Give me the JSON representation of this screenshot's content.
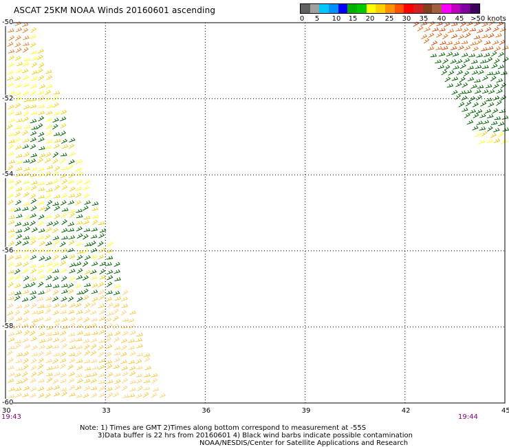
{
  "title": "ASCAT 25KM NOAA Winds 20160601 ascending",
  "legend": {
    "ticks": [
      "0",
      "5",
      "10",
      "15",
      "20",
      "25",
      "30",
      "35",
      "40",
      "45",
      ">50 knots"
    ],
    "colors": [
      "#606060",
      "#a0a0a0",
      "#00c8ff",
      "#0090ff",
      "#0000ff",
      "#00b000",
      "#00c800",
      "#ffff00",
      "#ffd000",
      "#ff9000",
      "#ff5000",
      "#ff0000",
      "#d02020",
      "#804020",
      "#a06040",
      "#ff00ff",
      "#c000c0",
      "#8000a0",
      "#400060"
    ]
  },
  "axes": {
    "lon_ticks": [
      "30",
      "33",
      "36",
      "39",
      "42",
      "45"
    ],
    "lat_ticks": [
      "-50",
      "-52",
      "-54",
      "-56",
      "-58",
      "-60"
    ],
    "lon_range": [
      30,
      45
    ],
    "lat_range": [
      -60,
      -50
    ],
    "grid": true
  },
  "times": {
    "left": "19:43",
    "right": "19:44"
  },
  "notes": {
    "line1": "Note: 1) Times are GMT 2)Times along bottom correspond to measurement at -55S",
    "line2": "3)Data buffer is 22 hrs from 20160601 4) Black wind barbs indicate possible contamination",
    "line3": "NOAA/NESDIS/Center for Satellite Applications and Research"
  },
  "swaths": [
    {
      "name": "left",
      "lon_top": [
        30,
        30.8
      ],
      "lon_bottom": [
        30,
        34.8
      ],
      "lat": [
        -60,
        -50
      ]
    },
    {
      "name": "right",
      "lon_top": [
        42.2,
        45
      ],
      "lon_bottom": [
        44.2,
        45
      ],
      "lat": [
        -53.2,
        -50
      ]
    }
  ]
}
